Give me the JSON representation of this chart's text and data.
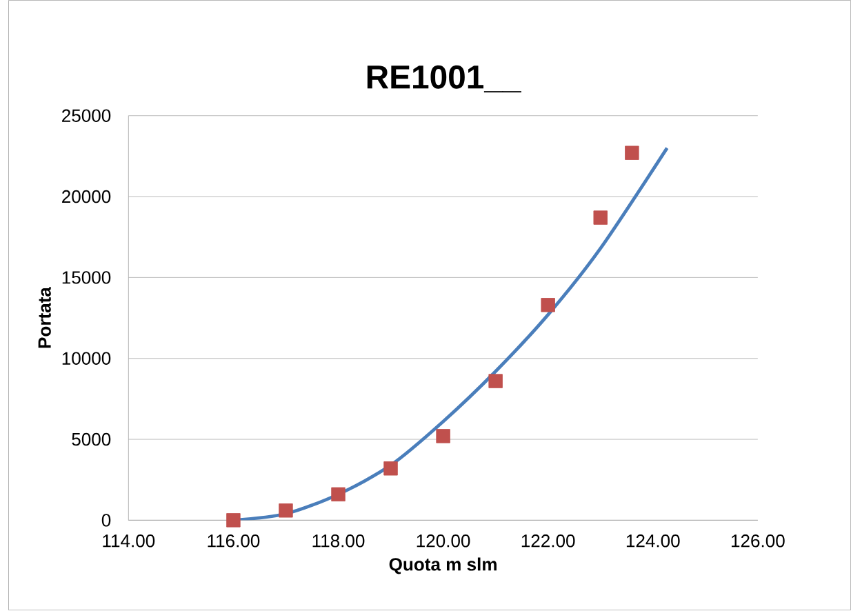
{
  "chart_data": {
    "type": "scatter",
    "title": "RE1001__",
    "xlabel": "Quota m slm",
    "ylabel": "Portata",
    "xlim": [
      114,
      126
    ],
    "xticks": [
      {
        "value": 114,
        "label": "114.00"
      },
      {
        "value": 116,
        "label": "116.00"
      },
      {
        "value": 118,
        "label": "118.00"
      },
      {
        "value": 120,
        "label": "120.00"
      },
      {
        "value": 122,
        "label": "122.00"
      },
      {
        "value": 124,
        "label": "124.00"
      },
      {
        "value": 126,
        "label": "126.00"
      }
    ],
    "ylim": [
      0,
      25000
    ],
    "yticks": [
      0,
      5000,
      10000,
      15000,
      20000,
      25000
    ],
    "grid": "y",
    "series": [
      {
        "color": "#c0504d",
        "marker": "square",
        "x": [
          116,
          117,
          118,
          119,
          120,
          121,
          122,
          123,
          123.6
        ],
        "values": [
          0,
          600,
          1600,
          3200,
          5200,
          8600,
          13300,
          18700,
          22700
        ]
      },
      {
        "type": "line",
        "color": "#4a7ebb",
        "marker": "none",
        "line_style": "solid",
        "x": [
          116,
          117,
          118,
          119,
          120,
          121,
          122,
          123,
          124.27
        ],
        "values": [
          0,
          400,
          1600,
          3400,
          6100,
          9200,
          12700,
          16800,
          23000
        ]
      }
    ]
  }
}
